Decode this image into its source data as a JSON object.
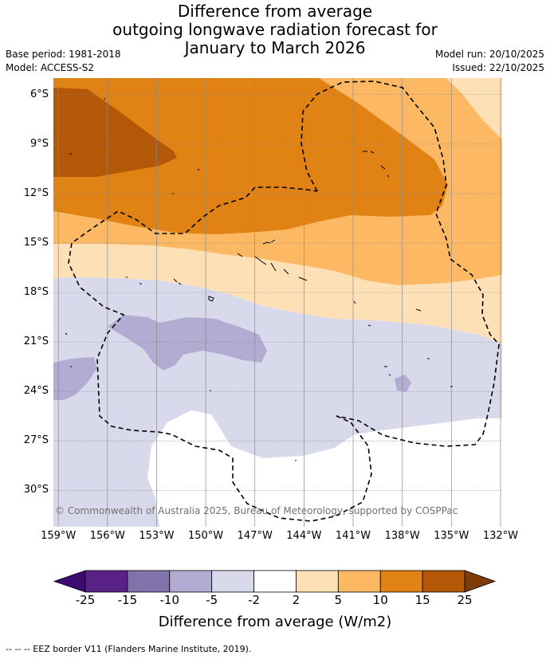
{
  "title": {
    "line1": "Difference from average",
    "line2": "outgoing longwave radiation forecast for",
    "line3": "January to March 2026"
  },
  "meta": {
    "base_period": "Base period: 1981-2018",
    "model": "Model: ACCESS-S2",
    "model_run": "Model run: 20/10/2025",
    "issued": "Issued: 22/10/2025"
  },
  "map": {
    "region": "South Pacific, 159°W to 132°W, 5°S to 32°S",
    "lat_labels": [
      "6°S",
      "9°S",
      "12°S",
      "15°S",
      "18°S",
      "21°S",
      "24°S",
      "27°S",
      "30°S"
    ],
    "lon_labels": [
      "159°W",
      "156°W",
      "153°W",
      "150°W",
      "147°W",
      "144°W",
      "141°W",
      "138°W",
      "135°W",
      "132°W"
    ],
    "copyright": "© Commonwealth of Australia 2025, Bureau of Meteorology, supported by COSPPac"
  },
  "legend": {
    "ticks": [
      "-25",
      "-15",
      "-10",
      "-5",
      "-2",
      "2",
      "5",
      "10",
      "15",
      "25"
    ],
    "colors": [
      "#3f0a6f",
      "#5a2288",
      "#8073ac",
      "#b2abd2",
      "#d8daeb",
      "#ffffff",
      "#fee0b6",
      "#fdb863",
      "#e08214",
      "#b35806",
      "#7f3b08"
    ],
    "title": "Difference from average (W/m2)"
  },
  "footnote": "--  --  -- EEZ border V11 (Flanders Marine Institute, 2019).",
  "chart_data": {
    "type": "heatmap",
    "variable": "Outgoing longwave radiation anomaly",
    "units": "W/m2",
    "period": "January to March 2026",
    "x_range": [
      -159.3,
      -131.9
    ],
    "y_range": [
      -32.2,
      -5.0
    ],
    "class_breaks": [
      -25,
      -15,
      -10,
      -5,
      -2,
      2,
      5,
      10,
      15,
      25
    ]
  }
}
